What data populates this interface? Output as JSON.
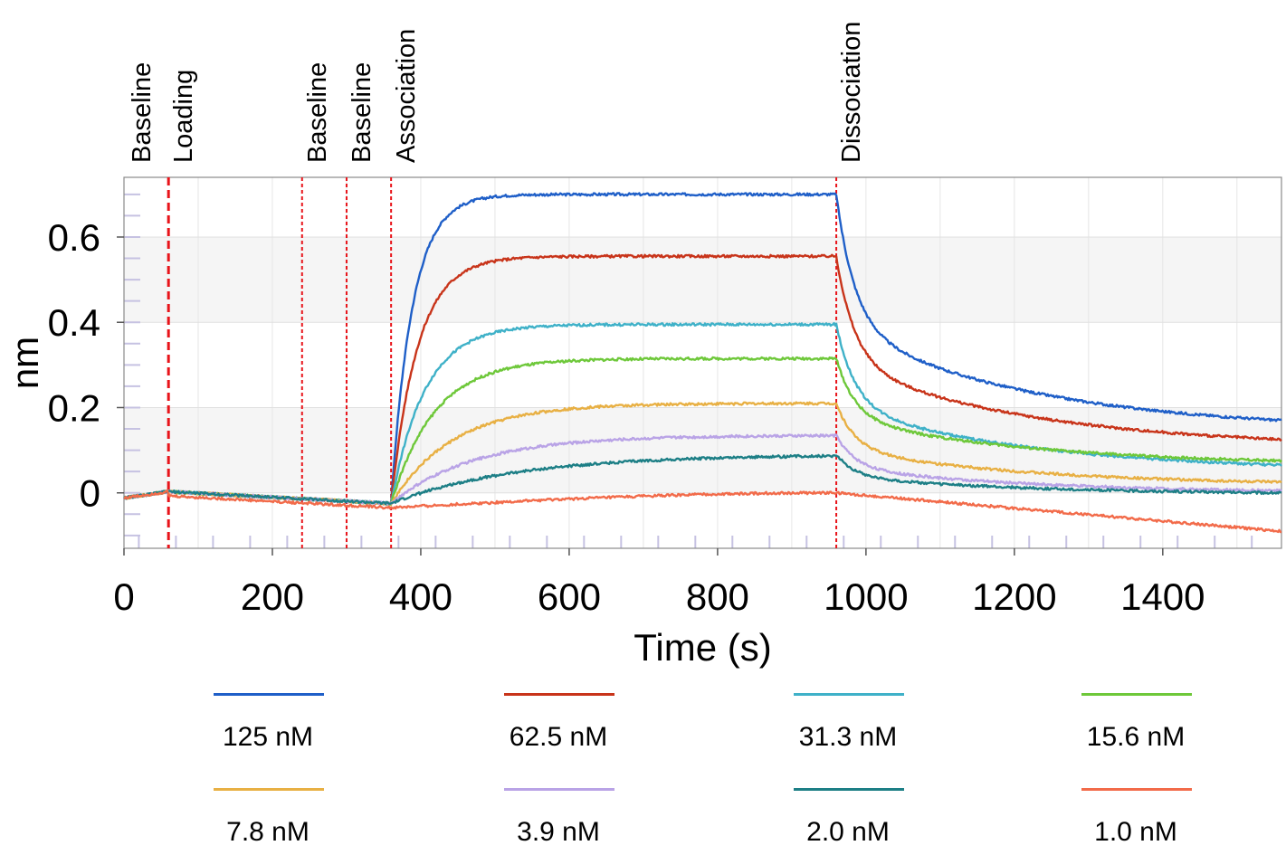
{
  "chart_data": {
    "type": "line",
    "xlabel": "Time (s)",
    "ylabel": "nm",
    "xlim": [
      0,
      1560
    ],
    "ylim": [
      -0.13,
      0.74
    ],
    "xticks": [
      0,
      200,
      400,
      600,
      800,
      1000,
      1200,
      1400
    ],
    "yticks": [
      0,
      0.2,
      0.4,
      0.6
    ],
    "ytick_labels": [
      "0",
      "0.2",
      "0.4",
      "0.6"
    ],
    "grid": true,
    "legend_position": "bottom",
    "step_markers": [
      {
        "x": 0,
        "label": "Baseline"
      },
      {
        "x": 60,
        "label": "Loading"
      },
      {
        "x": 240,
        "label": "Baseline"
      },
      {
        "x": 300,
        "label": "Baseline"
      },
      {
        "x": 360,
        "label": "Association"
      },
      {
        "x": 960,
        "label": "Dissociation"
      }
    ],
    "series": [
      {
        "name": "125 nM",
        "color": "#1f5fc8",
        "plateau": 0.7,
        "end": 0.17
      },
      {
        "name": "62.5 nM",
        "color": "#c8341a",
        "plateau": 0.555,
        "end": 0.125
      },
      {
        "name": "31.3 nM",
        "color": "#3fb1c8",
        "plateau": 0.395,
        "end": 0.065
      },
      {
        "name": "15.6 nM",
        "color": "#6ec83a",
        "plateau": 0.315,
        "end": 0.075
      },
      {
        "name": "7.8 nM",
        "color": "#e8b044",
        "plateau": 0.21,
        "end": 0.025
      },
      {
        "name": "3.9 nM",
        "color": "#b9a3e6",
        "plateau": 0.135,
        "end": 0.005
      },
      {
        "name": "2.0 nM",
        "color": "#1d7f86",
        "plateau": 0.09,
        "end": 0.0
      },
      {
        "name": "1.0 nM",
        "color": "#f26b4a",
        "plateau": 0.0,
        "end": -0.09
      }
    ]
  }
}
